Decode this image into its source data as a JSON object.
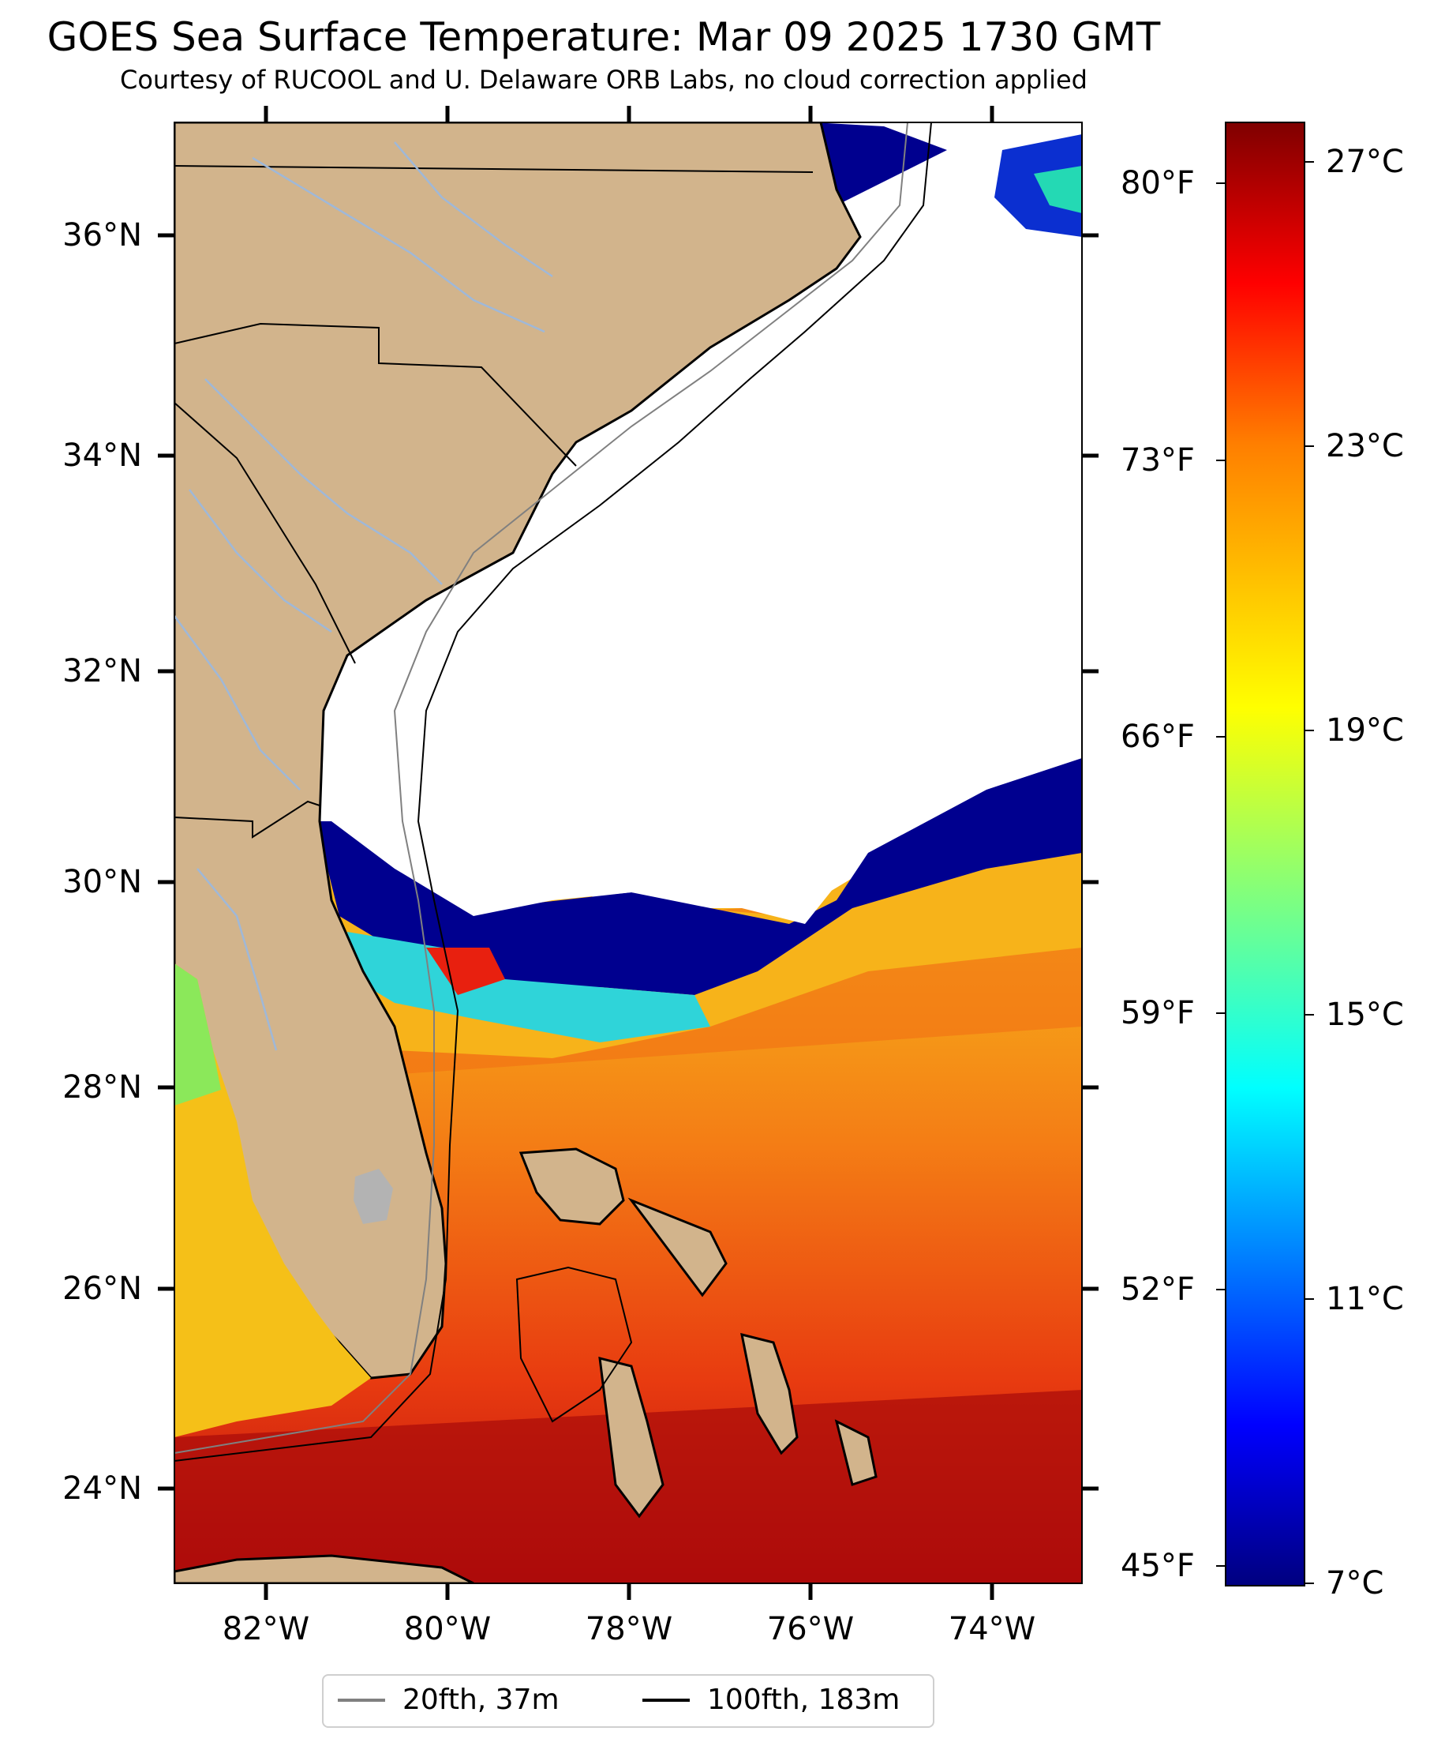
{
  "title": "GOES Sea Surface Temperature: Mar 09 2025 1730 GMT",
  "subtitle": "Courtesy of RUCOOL and U. Delaware ORB Labs, no cloud correction applied",
  "map": {
    "lat_labels": [
      "36°N",
      "34°N",
      "32°N",
      "30°N",
      "28°N",
      "26°N",
      "24°N"
    ],
    "lon_labels": [
      "82°W",
      "80°W",
      "78°W",
      "76°W",
      "74°W"
    ],
    "fahrenheit_labels": [
      "80°F",
      "73°F",
      "66°F",
      "59°F",
      "52°F",
      "45°F"
    ],
    "extent": {
      "lon_min": -83,
      "lon_max": -73,
      "lat_min": 23.1,
      "lat_max": 37.0
    }
  },
  "colorbar": {
    "min_c": 7,
    "max_c": 27.6,
    "labels": [
      "27°C",
      "23°C",
      "19°C",
      "15°C",
      "11°C",
      "7°C"
    ],
    "colormap": "jet",
    "colors": [
      "#00007f",
      "#0000ff",
      "#007fff",
      "#00ffff",
      "#7fff7f",
      "#ffff00",
      "#ff7f00",
      "#ff0000",
      "#7f0000"
    ]
  },
  "colors": {
    "land": "#d2b48c",
    "no_data": "#ffffff",
    "rivers": "#9fb8d8",
    "lake": "#b3b3b3"
  },
  "legend": {
    "items": [
      {
        "label": "20fth, 37m",
        "color": "#808080"
      },
      {
        "label": "100fth, 183m",
        "color": "#000000"
      }
    ]
  }
}
